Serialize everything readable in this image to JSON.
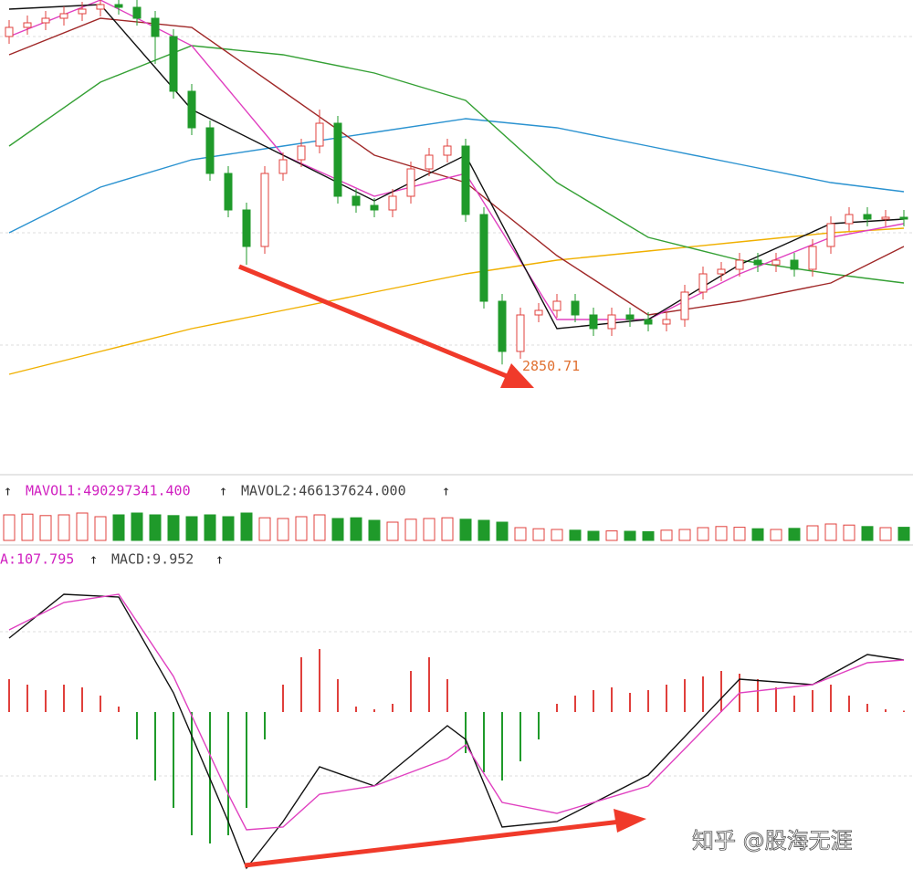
{
  "chart_data": [
    {
      "type": "candlestick",
      "ylim": [
        2735,
        3250
      ],
      "up_color": "#e0403c",
      "down_color": "#1f9a2a",
      "open": [
        3210,
        3220,
        3225,
        3230,
        3235,
        3240,
        3245,
        3242,
        3230,
        3210,
        3150,
        3110,
        3060,
        3020,
        2980,
        3060,
        3075,
        3090,
        3115,
        3035,
        3025,
        3020,
        3035,
        3065,
        3080,
        3090,
        3015,
        2920,
        2865,
        2905,
        2910,
        2920,
        2905,
        2890,
        2905,
        2900,
        2895,
        2900,
        2930,
        2950,
        2955,
        2965,
        2960,
        2965,
        2955,
        2980,
        3005,
        3015,
        3010,
        3012
      ],
      "high": [
        3228,
        3233,
        3238,
        3243,
        3248,
        3250,
        3250,
        3250,
        3238,
        3218,
        3158,
        3118,
        3068,
        3028,
        3068,
        3083,
        3098,
        3130,
        3123,
        3043,
        3033,
        3043,
        3073,
        3088,
        3098,
        3098,
        3023,
        2928,
        2913,
        2918,
        2928,
        2928,
        2913,
        2913,
        2913,
        2908,
        2908,
        2938,
        2958,
        2963,
        2973,
        2973,
        2973,
        2973,
        2988,
        3013,
        3023,
        3023,
        3020,
        3020
      ],
      "low": [
        3202,
        3212,
        3217,
        3222,
        3227,
        3232,
        3234,
        3222,
        3180,
        3142,
        3102,
        3052,
        3012,
        2960,
        2972,
        3052,
        3067,
        3082,
        3027,
        3017,
        3012,
        3012,
        3027,
        3057,
        3072,
        3007,
        2912,
        2850.71,
        2857,
        2897,
        2902,
        2897,
        2882,
        2882,
        2892,
        2887,
        2887,
        2892,
        2922,
        2942,
        2947,
        2952,
        2952,
        2947,
        2947,
        2972,
        2997,
        3002,
        3002,
        3002
      ],
      "close": [
        3220,
        3225,
        3230,
        3235,
        3240,
        3245,
        3242,
        3230,
        3210,
        3150,
        3110,
        3060,
        3020,
        2980,
        3060,
        3075,
        3090,
        3115,
        3035,
        3025,
        3020,
        3035,
        3065,
        3080,
        3090,
        3015,
        2920,
        2865,
        2905,
        2910,
        2920,
        2905,
        2890,
        2905,
        2900,
        2895,
        2900,
        2930,
        2950,
        2955,
        2965,
        2960,
        2965,
        2955,
        2980,
        3005,
        3015,
        3010,
        3012,
        3010
      ],
      "annotation": "2850.71",
      "series": [
        {
          "color": "#f0b000",
          "x": [
            0,
            5,
            10,
            15,
            20,
            25,
            30,
            35,
            40,
            45,
            49
          ],
          "values": [
            2840,
            2865,
            2890,
            2910,
            2930,
            2950,
            2965,
            2975,
            2985,
            2995,
            3000
          ]
        },
        {
          "color": "#2a92d0",
          "x": [
            0,
            5,
            10,
            15,
            20,
            25,
            30,
            35,
            40,
            45,
            49
          ],
          "values": [
            2995,
            3045,
            3075,
            3090,
            3105,
            3120,
            3110,
            3090,
            3070,
            3050,
            3040
          ]
        },
        {
          "color": "#34a034",
          "x": [
            0,
            5,
            10,
            15,
            20,
            25,
            30,
            35,
            40,
            45,
            49
          ],
          "values": [
            3090,
            3160,
            3200,
            3190,
            3170,
            3140,
            3050,
            2990,
            2965,
            2950,
            2940
          ]
        },
        {
          "color": "#a02828",
          "x": [
            0,
            5,
            10,
            15,
            20,
            25,
            30,
            35,
            40,
            45,
            49
          ],
          "values": [
            3190,
            3230,
            3220,
            3150,
            3080,
            3050,
            2970,
            2905,
            2920,
            2940,
            2980
          ]
        },
        {
          "color": "#e040c0",
          "x": [
            0,
            5,
            10,
            15,
            20,
            25,
            30,
            35,
            40,
            45,
            49
          ],
          "values": [
            3210,
            3250,
            3200,
            3080,
            3035,
            3060,
            2900,
            2900,
            2950,
            2990,
            3005
          ]
        },
        {
          "color": "#111111",
          "x": [
            0,
            5,
            10,
            15,
            20,
            25,
            30,
            35,
            40,
            45,
            49
          ],
          "values": [
            3240,
            3245,
            3130,
            3080,
            3030,
            3080,
            2890,
            2900,
            2960,
            3005,
            3010
          ]
        }
      ]
    },
    {
      "type": "volume",
      "ylim": [
        0,
        800000000.0
      ],
      "label_1": "MAVOL1:490297341.400",
      "label_2": "MAVOL2:466137624.000",
      "values": [
        700000000.0,
        720000000.0,
        680000000.0,
        700000000.0,
        750000000.0,
        650000000.0,
        700000000.0,
        750000000.0,
        700000000.0,
        680000000.0,
        650000000.0,
        700000000.0,
        650000000.0,
        750000000.0,
        620000000.0,
        600000000.0,
        650000000.0,
        700000000.0,
        600000000.0,
        620000000.0,
        550000000.0,
        500000000.0,
        580000000.0,
        600000000.0,
        620000000.0,
        580000000.0,
        550000000.0,
        500000000.0,
        350000000.0,
        320000000.0,
        300000000.0,
        280000000.0,
        250000000.0,
        260000000.0,
        250000000.0,
        240000000.0,
        280000000.0,
        300000000.0,
        350000000.0,
        380000000.0,
        360000000.0,
        320000000.0,
        300000000.0,
        330000000.0,
        400000000.0,
        450000000.0,
        420000000.0,
        380000000.0,
        350000000.0,
        360000000.0
      ]
    },
    {
      "type": "macd",
      "ylim": [
        -60,
        50
      ],
      "label_1": "A:107.795",
      "label_2": "MACD:9.952",
      "up_color": "#e0403c",
      "down_color": "#1f9a2a",
      "values": [
        12,
        10,
        8,
        10,
        9,
        6,
        2,
        -10,
        -25,
        -35,
        -45,
        -48,
        -45,
        -35,
        -10,
        10,
        20,
        23,
        12,
        2,
        1,
        3,
        15,
        20,
        12,
        -15,
        -22,
        -25,
        -18,
        -10,
        3,
        6,
        8,
        9,
        7,
        8,
        10,
        12,
        13,
        15,
        14,
        12,
        9,
        6,
        8,
        10,
        6,
        3,
        1,
        0.5
      ],
      "series": [
        {
          "color": "#111111",
          "x": [
            0,
            3,
            6,
            9,
            12,
            13,
            15,
            17,
            20,
            24,
            25,
            27,
            30,
            35,
            40,
            44,
            47,
            49
          ],
          "values": [
            27,
            43,
            42,
            7,
            -40,
            -57,
            -40,
            -20,
            -27,
            -5,
            -10,
            -42,
            -40,
            -23,
            12,
            10,
            21,
            19
          ]
        },
        {
          "color": "#e040c0",
          "x": [
            0,
            3,
            6,
            9,
            12,
            13,
            15,
            17,
            20,
            24,
            25,
            27,
            30,
            35,
            40,
            44,
            47,
            49
          ],
          "values": [
            30,
            40,
            43,
            13,
            -30,
            -43,
            -42,
            -30,
            -27,
            -17,
            -12,
            -33,
            -37,
            -27,
            7,
            10,
            18,
            19
          ]
        }
      ]
    }
  ],
  "watermark": "知乎 @股海无涯"
}
